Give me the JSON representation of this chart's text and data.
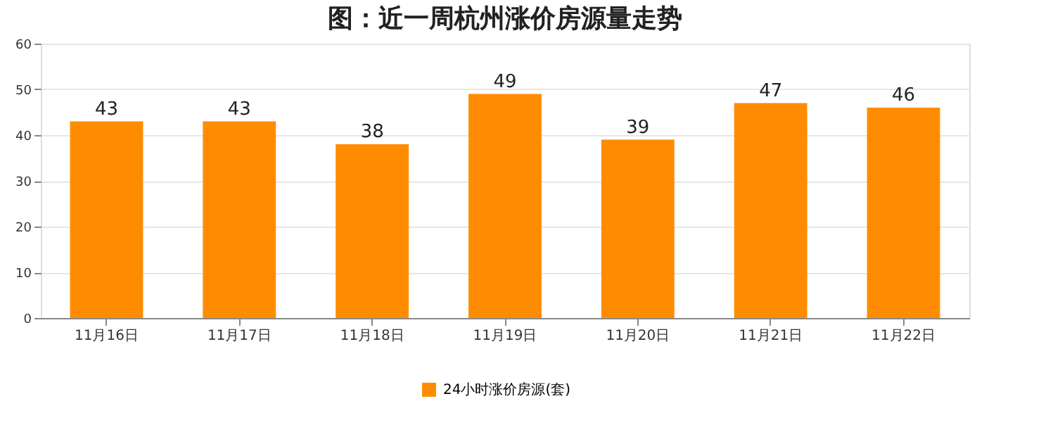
{
  "chart_data": {
    "type": "bar",
    "title": "图：近一周杭州涨价房源量走势",
    "categories": [
      "11月16日",
      "11月17日",
      "11月18日",
      "11月19日",
      "11月20日",
      "11月21日",
      "11月22日"
    ],
    "series": [
      {
        "name": "24小时涨价房源(套)",
        "color": "#ff8c00",
        "values": [
          43,
          43,
          38,
          49,
          39,
          47,
          46
        ]
      }
    ],
    "ylim": [
      0,
      60
    ],
    "yticks": [
      0,
      10,
      20,
      30,
      40,
      50,
      60
    ],
    "grid": "y",
    "legend": "bottom",
    "data_labels": true
  }
}
